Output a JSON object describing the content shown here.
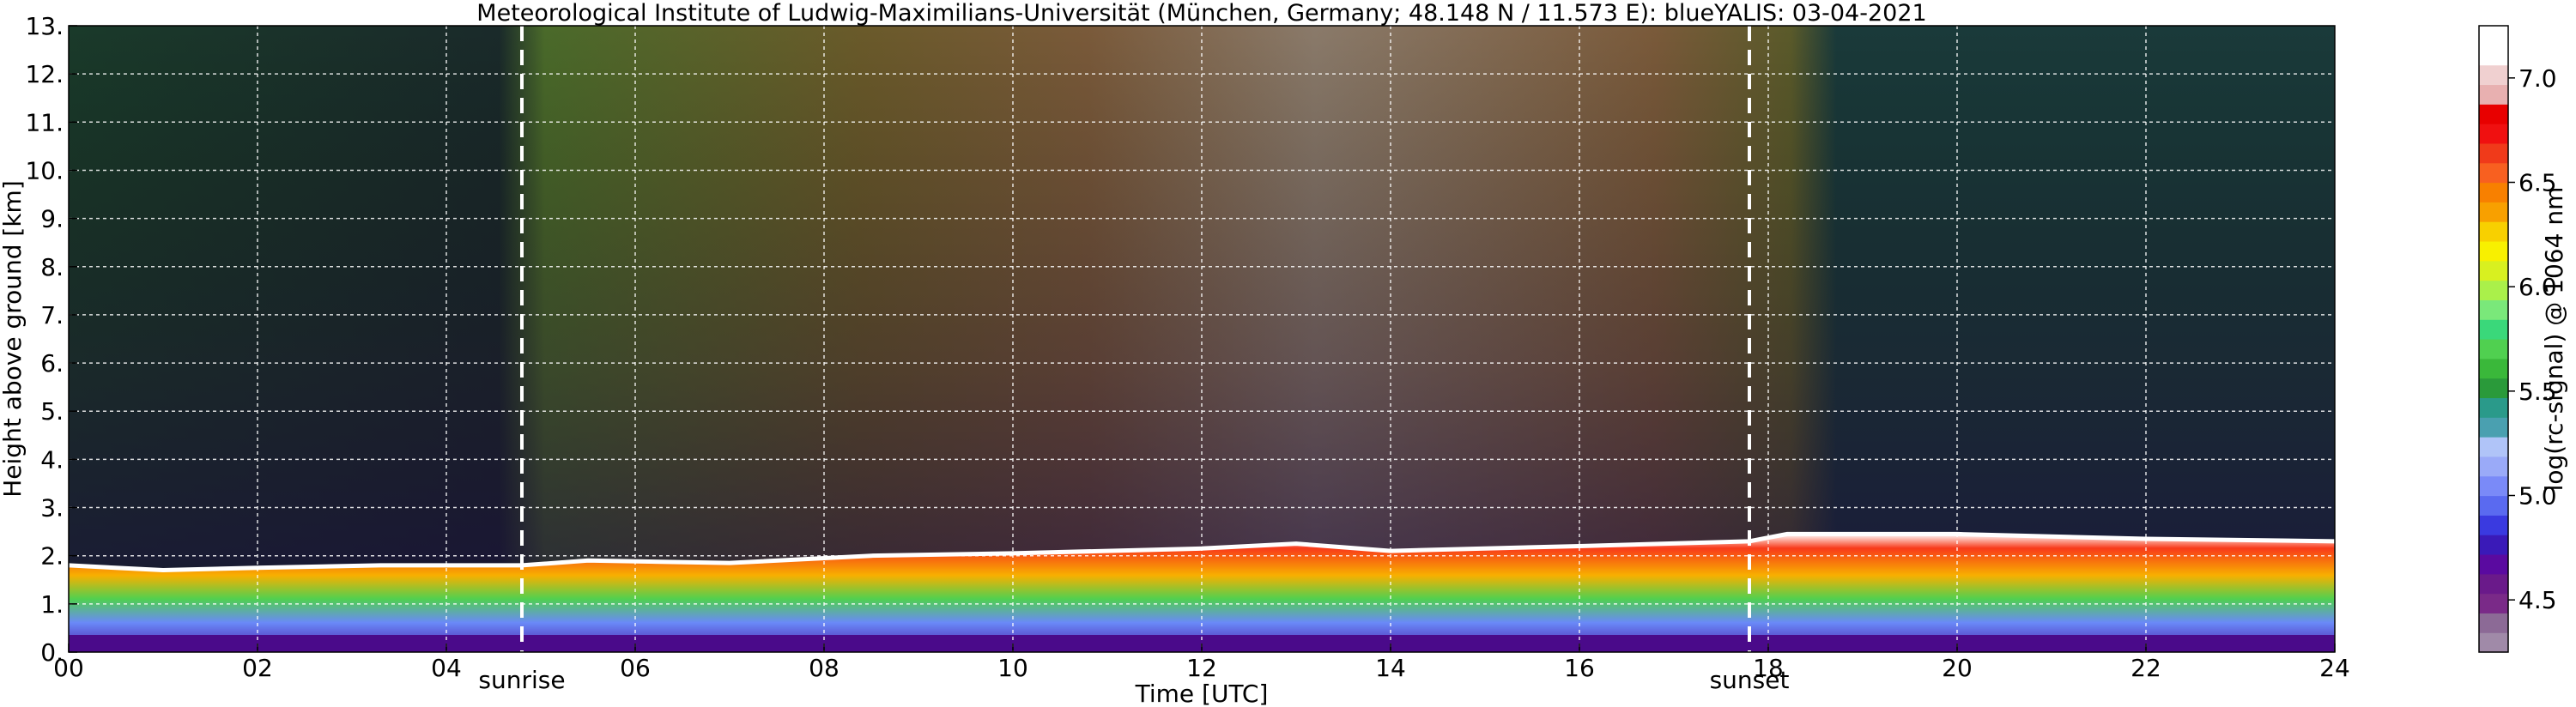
{
  "chart_data": {
    "type": "heatmap",
    "title": "Meteorological Institute of Ludwig-Maximilians-Universität (München, Germany; 48.148 N / 11.573 E):     blueYALIS: 03-04-2021",
    "xlabel": "Time [UTC]",
    "ylabel": "Height above ground [km]",
    "xlim": [
      0,
      24
    ],
    "ylim": [
      0,
      13
    ],
    "x_ticks": [
      "00",
      "02",
      "04",
      "06",
      "08",
      "10",
      "12",
      "14",
      "16",
      "18",
      "20",
      "22",
      "24"
    ],
    "y_ticks": [
      "0.",
      "1.",
      "2.",
      "3.",
      "4.",
      "5.",
      "6.",
      "7.",
      "8.",
      "9.",
      "10.",
      "11.",
      "12.",
      "13."
    ],
    "grid": true,
    "annotations": [
      {
        "label": "sunrise",
        "x": 4.8
      },
      {
        "label": "sunset",
        "x": 17.8
      }
    ],
    "colorbar": {
      "label": "log(rc-signal) @ 1064 nm",
      "range": [
        4.25,
        7.25
      ],
      "ticks": [
        "4.5",
        "5.0",
        "5.5",
        "6.0",
        "6.5",
        "7.0"
      ],
      "colors": [
        "#a08aa8",
        "#8c6a96",
        "#7a2a88",
        "#6a1a8a",
        "#5a0aa0",
        "#3a1ab8",
        "#3a3ae0",
        "#5a6af0",
        "#7a8af8",
        "#9aaaf8",
        "#b0c4f8",
        "#4aa0b0",
        "#2a9a8a",
        "#2a9a3a",
        "#3ab83a",
        "#50d050",
        "#3ad87a",
        "#7ae87a",
        "#aaf04a",
        "#d8f020",
        "#f8f000",
        "#f8d000",
        "#f8a000",
        "#f88000",
        "#f86020",
        "#f03a1a",
        "#f01010",
        "#e80000",
        "#e8b0b0",
        "#f0d0d0",
        "#ffffff",
        "#ffffff"
      ]
    },
    "features": {
      "boundary_layer_top_km": [
        [
          0,
          1.8
        ],
        [
          1,
          1.7
        ],
        [
          2,
          1.75
        ],
        [
          3.3,
          1.8
        ],
        [
          4.8,
          1.8
        ],
        [
          5.5,
          1.9
        ],
        [
          7,
          1.85
        ],
        [
          8.5,
          2.0
        ],
        [
          10,
          2.05
        ],
        [
          12,
          2.15
        ],
        [
          13,
          2.25
        ],
        [
          14,
          2.1
        ],
        [
          16,
          2.2
        ],
        [
          17.8,
          2.3
        ],
        [
          18.2,
          2.45
        ],
        [
          20,
          2.45
        ],
        [
          22,
          2.35
        ],
        [
          24,
          2.3
        ]
      ]
    }
  }
}
